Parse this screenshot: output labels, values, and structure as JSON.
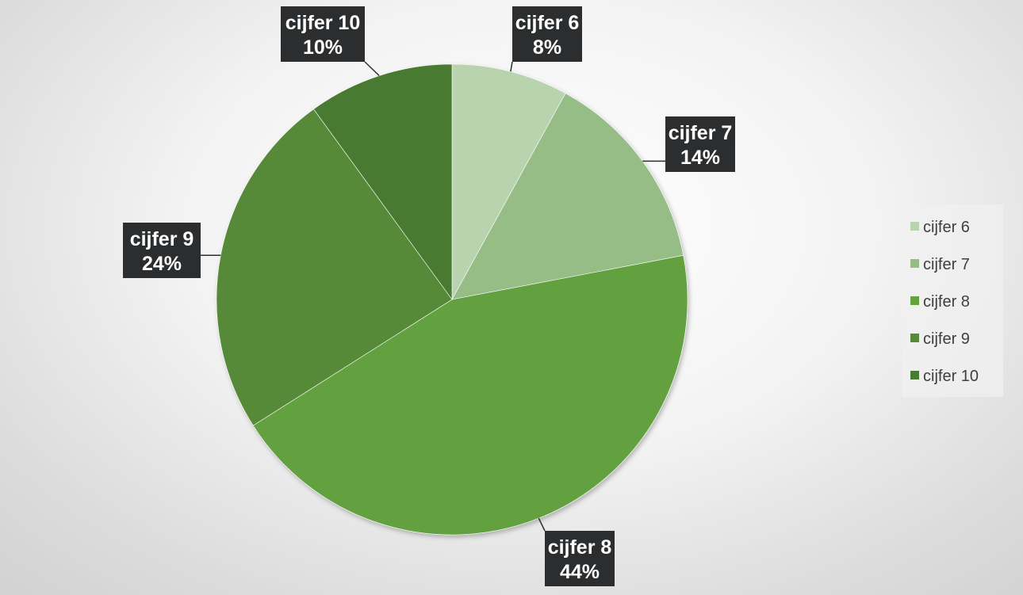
{
  "chart_data": {
    "type": "pie",
    "categories": [
      "cijfer 6",
      "cijfer 7",
      "cijfer 8",
      "cijfer 9",
      "cijfer 10"
    ],
    "values": [
      8,
      14,
      44,
      24,
      10
    ],
    "data_labels": [
      {
        "name": "cijfer 6",
        "value": "8%"
      },
      {
        "name": "cijfer 7",
        "value": "14%"
      },
      {
        "name": "cijfer 8",
        "value": "44%"
      },
      {
        "name": "cijfer 9",
        "value": "24%"
      },
      {
        "name": "cijfer 10",
        "value": "10%"
      }
    ],
    "colors": [
      "#b8d3ad",
      "#97bd86",
      "#64a13f",
      "#578a37",
      "#497a31"
    ],
    "legend": {
      "placement": "right",
      "entries": [
        "cijfer 6",
        "cijfer 7",
        "cijfer 8",
        "cijfer 9",
        "cijfer 10"
      ]
    },
    "label_box_color": "#2b2d2f",
    "start": "12 o'clock",
    "direction": "clockwise"
  }
}
